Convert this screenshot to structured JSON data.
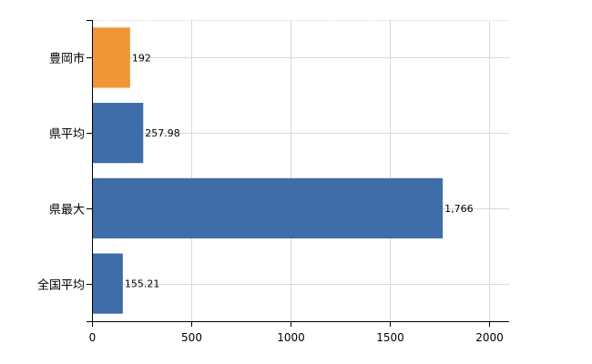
{
  "chart_data": {
    "type": "bar",
    "orientation": "horizontal",
    "categories": [
      "豊岡市",
      "県平均",
      "県最大",
      "全国平均"
    ],
    "values": [
      192,
      257.98,
      1766,
      155.21
    ],
    "value_labels": [
      "192",
      "257.98",
      "1,766",
      "155.21"
    ],
    "bar_colors": [
      "#f09637",
      "#3e6da9",
      "#3e6da9",
      "#3e6da9"
    ],
    "xlim": [
      0,
      2100
    ],
    "xticks": [
      0,
      500,
      1000,
      1500,
      2000
    ],
    "grid": true,
    "legend": "none"
  }
}
